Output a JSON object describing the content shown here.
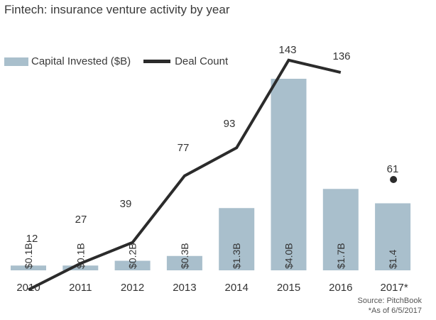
{
  "chart_data": {
    "type": "bar",
    "title": "Fintech: insurance venture activity by year",
    "categories": [
      "2010",
      "2011",
      "2012",
      "2013",
      "2014",
      "2015",
      "2016",
      "2017*"
    ],
    "series": [
      {
        "name": "Capital Invested ($B)",
        "type": "bar",
        "values": [
          0.1,
          0.1,
          0.2,
          0.3,
          1.3,
          4.0,
          1.7,
          1.4
        ],
        "labels": [
          "$0.1B",
          "$0.1B",
          "$0.2B",
          "$0.3B",
          "$1.3B",
          "$4.0B",
          "$1.7B",
          "$1.4"
        ]
      },
      {
        "name": "Deal Count",
        "type": "line",
        "values": [
          12,
          27,
          39,
          77,
          93,
          143,
          136,
          61
        ],
        "labels": [
          "12",
          "27",
          "39",
          "77",
          "93",
          "143",
          "136",
          "61"
        ]
      }
    ],
    "legend_position": "top-left",
    "grid": false,
    "colors": {
      "bar": "#a9bfcc",
      "line": "#2b2b2b",
      "text": "#333333"
    }
  },
  "source": "Source: PitchBook",
  "note": "*As of 6/5/2017"
}
